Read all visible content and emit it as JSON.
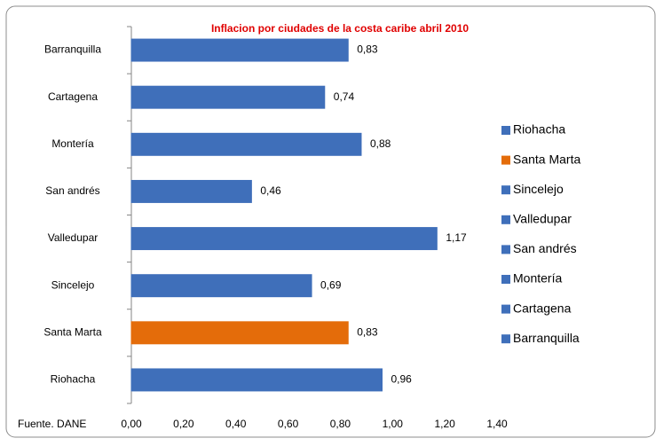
{
  "chart_data": {
    "type": "bar",
    "orientation": "horizontal",
    "title": "Inflacion por ciudades de la costa caribe abril 2010",
    "annotation": "Fuente. DANE",
    "categories": [
      "Riohacha",
      "Santa Marta",
      "Sincelejo",
      "Valledupar",
      "San andrés",
      "Montería",
      "Cartagena",
      "Barranquilla"
    ],
    "values": [
      0.96,
      0.83,
      0.69,
      1.17,
      0.46,
      0.88,
      0.74,
      0.83
    ],
    "value_labels": [
      "0,96",
      "0,83",
      "0,69",
      "1,17",
      "0,46",
      "0,88",
      "0,74",
      "0,83"
    ],
    "colors": [
      "#3f6fba",
      "#e46c0a",
      "#3f6fba",
      "#3f6fba",
      "#3f6fba",
      "#3f6fba",
      "#3f6fba",
      "#3f6fba"
    ],
    "xlim": [
      0,
      1.4
    ],
    "xticks": [
      {
        "value": 0,
        "label": "0,00"
      },
      {
        "value": 0.2,
        "label": "0,20"
      },
      {
        "value": 0.4,
        "label": "0,40"
      },
      {
        "value": 0.6,
        "label": "0,60"
      },
      {
        "value": 0.8,
        "label": "0,80"
      },
      {
        "value": 1.0,
        "label": "1,00"
      },
      {
        "value": 1.2,
        "label": "1,20"
      },
      {
        "value": 1.4,
        "label": "1,40"
      }
    ],
    "grid": false,
    "legend": "right"
  }
}
